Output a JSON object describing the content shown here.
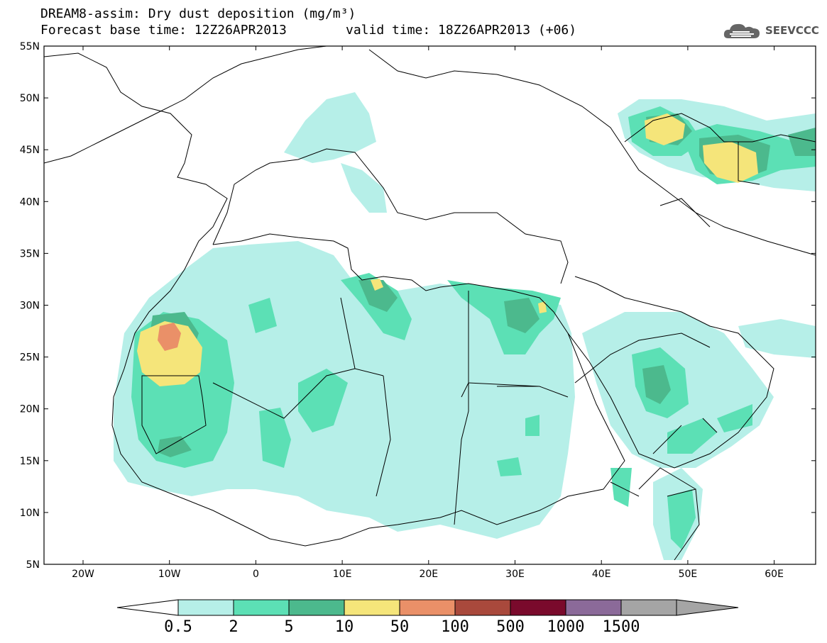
{
  "title": {
    "line1": "DREAM8-assim: Dry dust deposition (mg/m³)",
    "line2": "Forecast base time: 12Z26APR2013",
    "line3": "valid time: 18Z26APR2013 (+06)"
  },
  "logo": {
    "text": "SEEVCCC",
    "icon": "cloud-logo-icon"
  },
  "axes": {
    "lat_labels": [
      "55N",
      "50N",
      "45N",
      "40N",
      "35N",
      "30N",
      "25N",
      "20N",
      "15N",
      "10N",
      "5N"
    ],
    "lon_labels": [
      "20W",
      "10W",
      "0",
      "10E",
      "20E",
      "30E",
      "40E",
      "50E",
      "60E"
    ]
  },
  "legend": {
    "levels": [
      "0.5",
      "2",
      "5",
      "10",
      "50",
      "100",
      "500",
      "1000",
      "1500"
    ],
    "colors": [
      "#b6efe8",
      "#5ce0b5",
      "#4cb98d",
      "#f5e57a",
      "#ea9068",
      "#a9493c",
      "#7a0a2c",
      "#8b6a99",
      "#a5a5a5"
    ]
  }
}
